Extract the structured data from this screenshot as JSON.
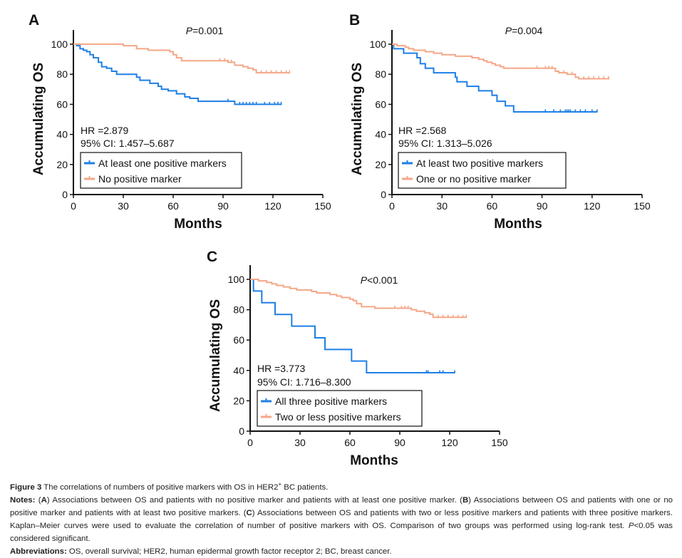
{
  "colors": {
    "blue": "#1f7fe6",
    "orange": "#f5a788",
    "axis": "#111111"
  },
  "chart_data": [
    {
      "type": "line",
      "panel": "A",
      "title": "",
      "p_value": "=0.001",
      "p_label": "P",
      "hr": "HR =2.879",
      "ci": "95% CI: 1.457–5.687",
      "xlabel": "Months",
      "ylabel": "Accumulating OS",
      "xlim": [
        0,
        150
      ],
      "ylim": [
        0,
        100
      ],
      "xticks": [
        "0",
        "30",
        "60",
        "90",
        "120",
        "150"
      ],
      "yticks": [
        "0",
        "20",
        "40",
        "60",
        "80",
        "100"
      ],
      "legend_position": "bottom-left",
      "series": [
        {
          "name": "At least one positive markers",
          "color": "blue",
          "steps": [
            [
              0,
              100
            ],
            [
              2,
              99
            ],
            [
              4,
              97
            ],
            [
              6,
              96
            ],
            [
              8,
              95
            ],
            [
              10,
              93
            ],
            [
              12,
              91
            ],
            [
              15,
              88
            ],
            [
              17,
              85
            ],
            [
              20,
              84
            ],
            [
              23,
              82
            ],
            [
              26,
              80
            ],
            [
              38,
              78
            ],
            [
              40,
              76
            ],
            [
              46,
              74
            ],
            [
              51,
              72
            ],
            [
              53,
              70
            ],
            [
              57,
              69
            ],
            [
              62,
              67
            ],
            [
              67,
              65
            ],
            [
              70,
              64
            ],
            [
              75,
              62
            ],
            [
              97,
              60
            ]
          ],
          "end": 125,
          "censored": [
            93,
            100,
            102,
            104,
            106,
            108,
            110,
            115,
            118,
            121,
            123,
            125
          ]
        },
        {
          "name": "No positive marker",
          "color": "orange",
          "steps": [
            [
              0,
              100
            ],
            [
              30,
              99
            ],
            [
              38,
              97
            ],
            [
              45,
              96
            ],
            [
              58,
              95
            ],
            [
              60,
              93
            ],
            [
              62,
              91
            ],
            [
              65,
              89
            ],
            [
              93,
              88
            ],
            [
              97,
              86
            ],
            [
              102,
              85
            ],
            [
              105,
              84
            ],
            [
              108,
              83
            ],
            [
              110,
              81
            ]
          ],
          "end": 130,
          "censored": [
            88,
            91,
            93,
            95,
            113,
            116,
            119,
            122,
            125,
            128,
            130
          ]
        }
      ]
    },
    {
      "type": "line",
      "panel": "B",
      "title": "",
      "p_value": "=0.004",
      "p_label": "P",
      "hr": "HR =2.568",
      "ci": "95% CI: 1.313–5.026",
      "xlabel": "Months",
      "ylabel": "Accumulating OS",
      "xlim": [
        0,
        150
      ],
      "ylim": [
        0,
        100
      ],
      "xticks": [
        "0",
        "30",
        "60",
        "90",
        "120",
        "150"
      ],
      "yticks": [
        "0",
        "20",
        "40",
        "60",
        "80",
        "100"
      ],
      "legend_position": "bottom-left",
      "series": [
        {
          "name": "At least two positive markers",
          "color": "blue",
          "steps": [
            [
              0,
              100
            ],
            [
              1,
              97
            ],
            [
              7,
              94
            ],
            [
              15,
              91
            ],
            [
              17,
              87
            ],
            [
              20,
              84
            ],
            [
              25,
              81
            ],
            [
              38,
              78
            ],
            [
              39,
              75
            ],
            [
              45,
              72
            ],
            [
              52,
              69
            ],
            [
              60,
              66
            ],
            [
              63,
              62
            ],
            [
              68,
              59
            ],
            [
              73,
              55
            ]
          ],
          "end": 123,
          "censored": [
            92,
            97,
            101,
            104,
            105,
            106,
            107,
            110,
            113,
            116,
            120,
            123
          ]
        },
        {
          "name": "One or no positive marker",
          "color": "orange",
          "steps": [
            [
              0,
              100
            ],
            [
              3,
              99
            ],
            [
              8,
              98
            ],
            [
              10,
              97
            ],
            [
              13,
              96
            ],
            [
              20,
              95
            ],
            [
              25,
              94
            ],
            [
              30,
              93
            ],
            [
              38,
              92
            ],
            [
              48,
              91
            ],
            [
              52,
              90
            ],
            [
              55,
              89
            ],
            [
              57,
              88
            ],
            [
              60,
              87
            ],
            [
              62,
              86
            ],
            [
              65,
              85
            ],
            [
              67,
              84
            ],
            [
              98,
              82
            ],
            [
              100,
              81
            ],
            [
              105,
              80
            ],
            [
              110,
              78
            ],
            [
              112,
              77
            ]
          ],
          "end": 130,
          "censored": [
            87,
            92,
            94,
            96,
            103,
            108,
            115,
            118,
            121,
            124,
            127,
            130
          ]
        }
      ]
    },
    {
      "type": "line",
      "panel": "C",
      "title": "",
      "p_value": "<0.001",
      "p_label": "P",
      "hr": "HR =3.773",
      "ci": "95% CI: 1.716–8.300",
      "xlabel": "Months",
      "ylabel": "Accumulating OS",
      "xlim": [
        0,
        150
      ],
      "ylim": [
        0,
        100
      ],
      "xticks": [
        "0",
        "30",
        "60",
        "90",
        "120",
        "150"
      ],
      "yticks": [
        "0",
        "20",
        "40",
        "60",
        "80",
        "100"
      ],
      "legend_position": "bottom-left",
      "series": [
        {
          "name": "All three positive markers",
          "color": "blue",
          "steps": [
            [
              0,
              100
            ],
            [
              2,
              92.3
            ],
            [
              7,
              84.6
            ],
            [
              15,
              76.9
            ],
            [
              25,
              69.2
            ],
            [
              39,
              61.5
            ],
            [
              45,
              53.8
            ],
            [
              61,
              46.2
            ],
            [
              70,
              38.5
            ]
          ],
          "end": 123,
          "censored": [
            106,
            107,
            114,
            116,
            123
          ]
        },
        {
          "name": "Two or less positive markers",
          "color": "orange",
          "steps": [
            [
              0,
              100
            ],
            [
              5,
              99
            ],
            [
              10,
              98
            ],
            [
              13,
              97
            ],
            [
              16,
              96
            ],
            [
              20,
              95
            ],
            [
              24,
              94
            ],
            [
              28,
              93
            ],
            [
              37,
              92
            ],
            [
              40,
              91
            ],
            [
              48,
              90
            ],
            [
              52,
              89
            ],
            [
              55,
              88
            ],
            [
              60,
              87
            ],
            [
              62,
              86
            ],
            [
              64,
              84
            ],
            [
              67,
              82
            ],
            [
              75,
              81
            ],
            [
              97,
              80
            ],
            [
              100,
              79
            ],
            [
              105,
              78
            ],
            [
              108,
              77
            ],
            [
              110,
              75
            ]
          ],
          "end": 130,
          "censored": [
            87,
            91,
            93,
            95,
            113,
            116,
            119,
            122,
            125,
            128,
            130
          ]
        }
      ]
    }
  ],
  "caption": {
    "figure_label": "Figure 3",
    "title": " The correlations of numbers of positive markers with OS in HER2",
    "title_sup": "+",
    "title_end": " BC patients.",
    "notes": [
      {
        "text": "Notes:",
        "bold": true
      },
      {
        "text": " (",
        "bold": false
      },
      {
        "text": "A",
        "bold": true
      },
      {
        "text": ") Associations between OS and patients with no positive marker and patients with at least one positive marker. (",
        "bold": false
      },
      {
        "text": "B",
        "bold": true
      },
      {
        "text": ") Associations between OS and patients with one or no positive marker and patients with at least two positive markers. (",
        "bold": false
      },
      {
        "text": "C",
        "bold": true
      },
      {
        "text": ") Associations between OS and patients with two or less positive markers and patients with three positive markers. Kaplan–Meier curves were used to evaluate the correlation of number of positive markers with OS. Comparison of two groups was performed using log-rank test. ",
        "bold": false
      },
      {
        "text": "P",
        "bold": false,
        "italic": true
      },
      {
        "text": "<0.05 was considered significant.",
        "bold": false
      }
    ],
    "abbreviations_label": "Abbreviations:",
    "abbreviations": " OS, overall survival; HER2, human epidermal growth factor receptor 2; BC, breast cancer."
  }
}
